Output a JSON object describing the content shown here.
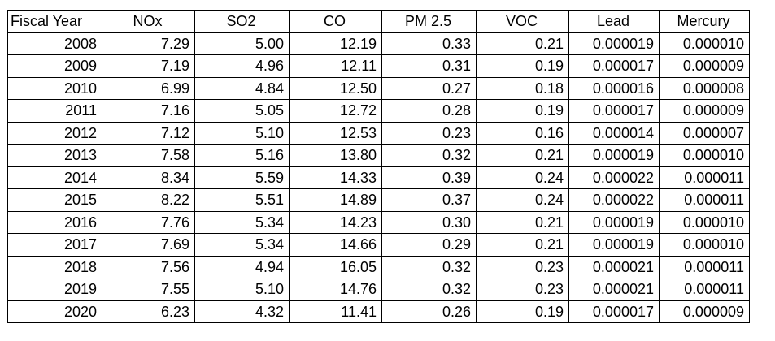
{
  "table": {
    "headers": [
      "Fiscal Year",
      "NOx",
      "SO2",
      "CO",
      "PM 2.5",
      "VOC",
      "Lead",
      "Mercury"
    ],
    "rows": [
      [
        "2008",
        "7.29",
        "5.00",
        "12.19",
        "0.33",
        "0.21",
        "0.000019",
        "0.000010"
      ],
      [
        "2009",
        "7.19",
        "4.96",
        "12.11",
        "0.31",
        "0.19",
        "0.000017",
        "0.000009"
      ],
      [
        "2010",
        "6.99",
        "4.84",
        "12.50",
        "0.27",
        "0.18",
        "0.000016",
        "0.000008"
      ],
      [
        "2011",
        "7.16",
        "5.05",
        "12.72",
        "0.28",
        "0.19",
        "0.000017",
        "0.000009"
      ],
      [
        "2012",
        "7.12",
        "5.10",
        "12.53",
        "0.23",
        "0.16",
        "0.000014",
        "0.000007"
      ],
      [
        "2013",
        "7.58",
        "5.16",
        "13.80",
        "0.32",
        "0.21",
        "0.000019",
        "0.000010"
      ],
      [
        "2014",
        "8.34",
        "5.59",
        "14.33",
        "0.39",
        "0.24",
        "0.000022",
        "0.000011"
      ],
      [
        "2015",
        "8.22",
        "5.51",
        "14.89",
        "0.37",
        "0.24",
        "0.000022",
        "0.000011"
      ],
      [
        "2016",
        "7.76",
        "5.34",
        "14.23",
        "0.30",
        "0.21",
        "0.000019",
        "0.000010"
      ],
      [
        "2017",
        "7.69",
        "5.34",
        "14.66",
        "0.29",
        "0.21",
        "0.000019",
        "0.000010"
      ],
      [
        "2018",
        "7.56",
        "4.94",
        "16.05",
        "0.32",
        "0.23",
        "0.000021",
        "0.000011"
      ],
      [
        "2019",
        "7.55",
        "5.10",
        "14.76",
        "0.32",
        "0.23",
        "0.000021",
        "0.000011"
      ],
      [
        "2020",
        "6.23",
        "4.32",
        "11.41",
        "0.26",
        "0.19",
        "0.000017",
        "0.000009"
      ]
    ]
  }
}
